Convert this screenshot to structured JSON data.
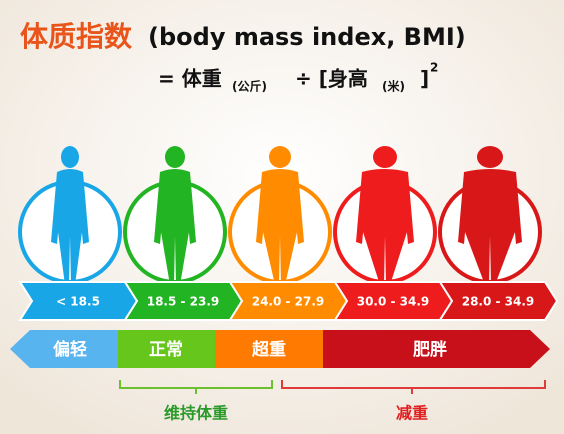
{
  "header": {
    "title": "体质指数",
    "subtitle": "(body mass index, BMI)"
  },
  "formula": {
    "equals": "= 体重",
    "weight_unit": "(公斤)",
    "divide": "÷ [身高",
    "height_unit": "(米)",
    "close": "]",
    "power": "2"
  },
  "figures": [
    {
      "range": "< 18.5"
    },
    {
      "range": "18.5 - 23.9"
    },
    {
      "range": "24.0 - 27.9"
    },
    {
      "range": "30.0 - 34.9"
    },
    {
      "range": "28.0 - 34.9"
    }
  ],
  "categories": [
    "偏轻",
    "正常",
    "超重",
    "肥胖"
  ],
  "brackets": [
    "维持体重",
    "减重"
  ]
}
